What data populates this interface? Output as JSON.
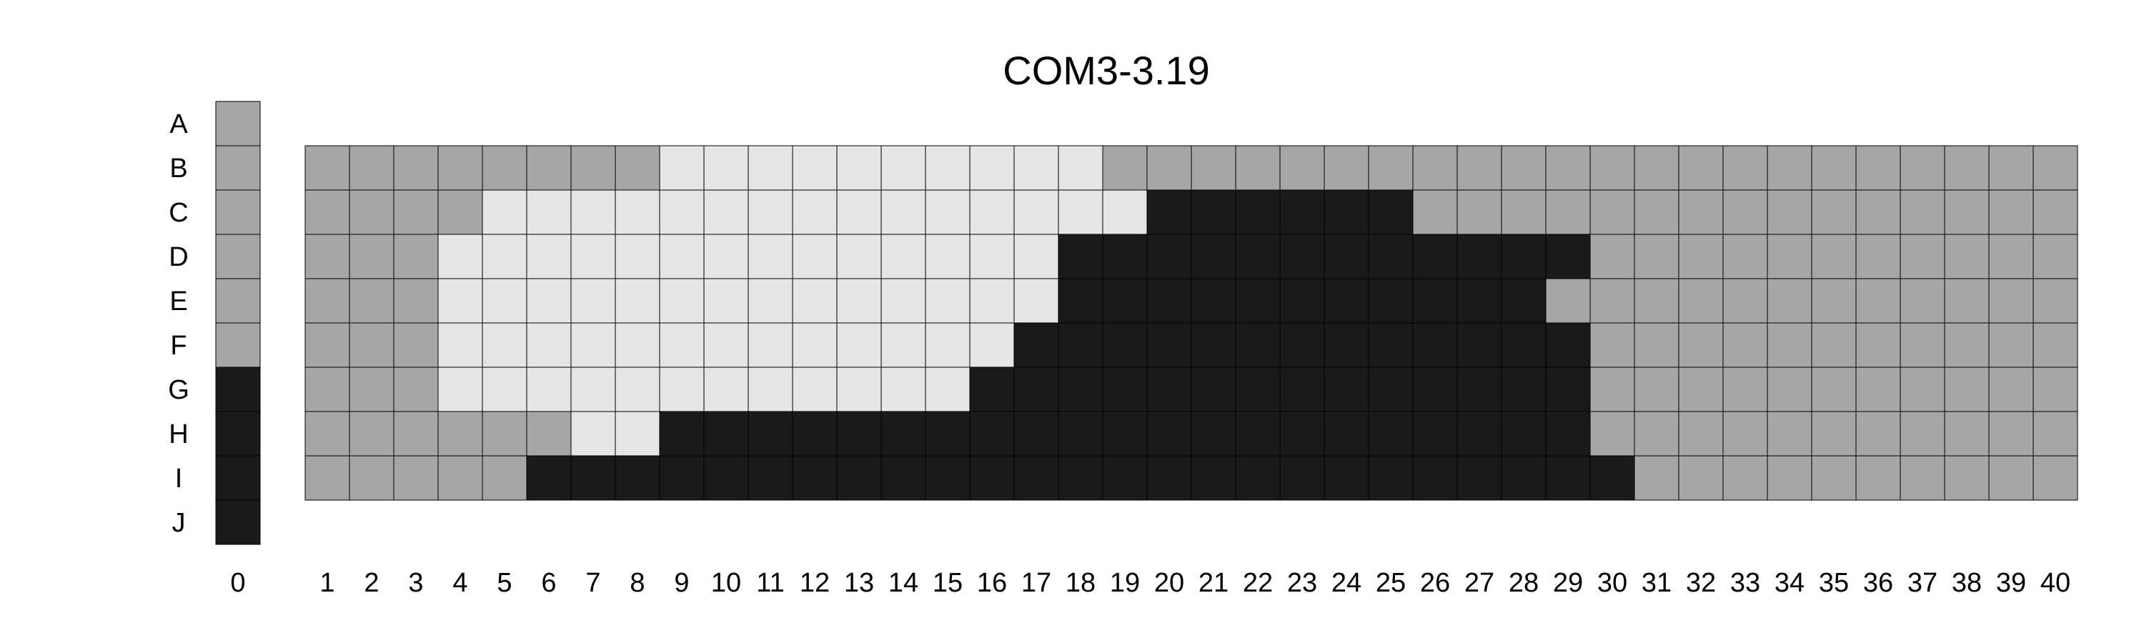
{
  "chart_data": {
    "type": "heatmap",
    "title": "COM3-3.19",
    "rows": [
      "A",
      "B",
      "C",
      "D",
      "E",
      "F",
      "G",
      "H",
      "I",
      "J"
    ],
    "column0_label": "0",
    "columns": [
      "1",
      "2",
      "3",
      "4",
      "5",
      "6",
      "7",
      "8",
      "9",
      "10",
      "11",
      "12",
      "13",
      "14",
      "15",
      "16",
      "17",
      "18",
      "19",
      "20",
      "21",
      "22",
      "23",
      "24",
      "25",
      "26",
      "27",
      "28",
      "29",
      "30",
      "31",
      "32",
      "33",
      "34",
      "35",
      "36",
      "37",
      "38",
      "39",
      "40"
    ],
    "colors": {
      "L": "#e6e6e6",
      "M": "#a6a6a6",
      "D": "#1a1a1a"
    },
    "column0_cells": {
      "A": "M",
      "B": "M",
      "C": "M",
      "D": "M",
      "E": "M",
      "F": "M",
      "G": "D",
      "H": "D",
      "I": "D",
      "J": "D"
    },
    "grid_cells": {
      "B": "MMMMMMMMLLLLLLLLLLMMMMMMMMMMMMMMMMMMMMMM",
      "C": "MMMMLLLLLLLLLLLLLLLDDDDDDMMMMMMMMMMMMMMM",
      "D": "MMMLLLLLLLLLLLLLLDDDDDDDDDDDDMMMMMMMMMMM",
      "E": "MMMLLLLLLLLLLLLLLDDDDDDDDDDDMMMMMMMMMMMM",
      "F": "MMMLLLLLLLLLLLLLDDDDDDDDDDDDDMMMMMMMMMMM",
      "G": "MMMLLLLLLLLLLLLDDDDDDDDDDDDDDMMMMMMMMMMM",
      "H": "MMMMMMLLDDDDDDDDDDDDDDDDDDDDDMMMMMMMMMMM",
      "I": "MMMMMDDDDDDDDDDDDDDDDDDDDDDDDDMMMMMMMMMM"
    }
  }
}
